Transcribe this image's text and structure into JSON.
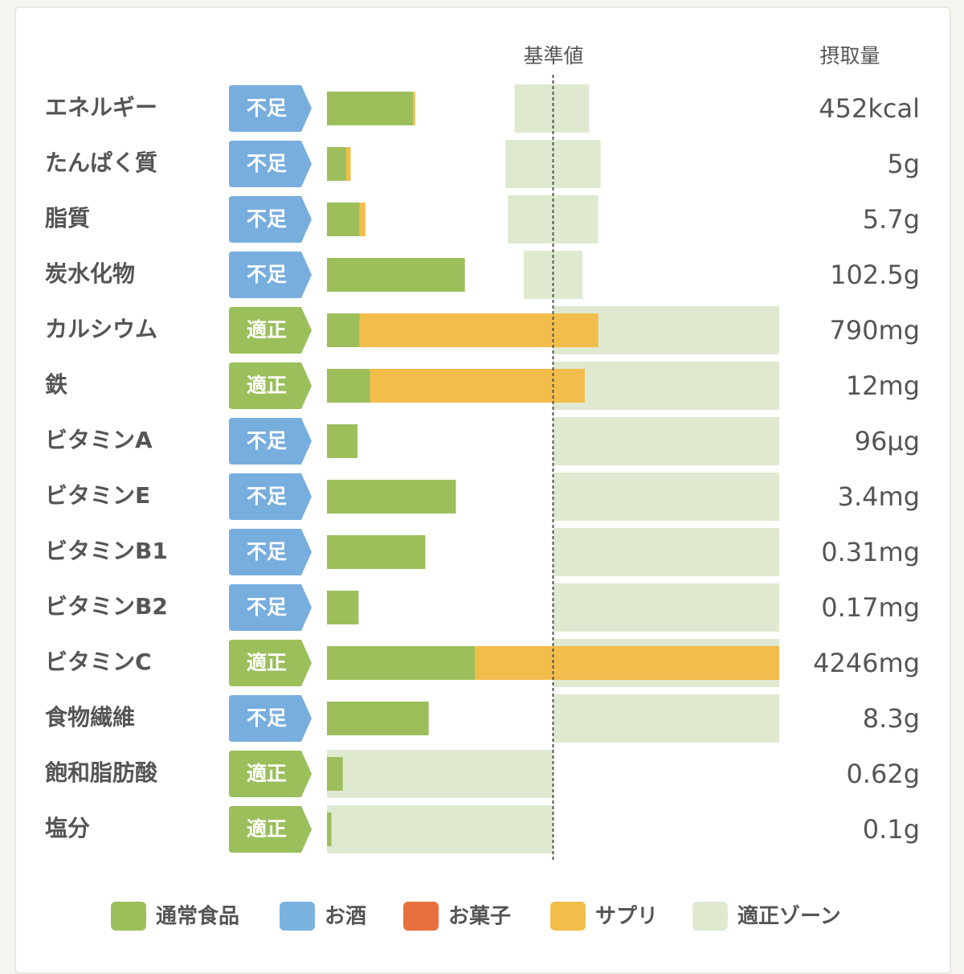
{
  "chart_data": {
    "type": "bar",
    "reference_label": "基準値",
    "amount_label": "摂取量",
    "reference": 100,
    "xlim": [
      0,
      200
    ],
    "categories": [
      "エネルギー",
      "たんぱく質",
      "脂質",
      "炭水化物",
      "カルシウム",
      "鉄",
      "ビタミンA",
      "ビタミンE",
      "ビタミンB1",
      "ビタミンB2",
      "ビタミンC",
      "食物繊維",
      "飽和脂肪酸",
      "塩分"
    ],
    "status": [
      "不足",
      "不足",
      "不足",
      "不足",
      "適正",
      "適正",
      "不足",
      "不足",
      "不足",
      "不足",
      "適正",
      "不足",
      "適正",
      "適正"
    ],
    "status_colors": {
      "不足": "#78aede",
      "適正": "#9bbf5b"
    },
    "amounts": [
      "452kcal",
      "5g",
      "5.7g",
      "102.5g",
      "790mg",
      "12mg",
      "96μg",
      "3.4mg",
      "0.31mg",
      "0.17mg",
      "4246mg",
      "8.3g",
      "0.62g",
      "0.1g"
    ],
    "series": [
      {
        "name": "通常食品",
        "color": "#9cbf5c",
        "values": [
          38,
          8.5,
          14.5,
          61,
          14.5,
          19,
          13.5,
          57,
          43.5,
          14,
          65.5,
          45,
          7,
          2
        ]
      },
      {
        "name": "お酒",
        "color": "#7ab3e0",
        "values": [
          0,
          0,
          0,
          0,
          0,
          0,
          0,
          0,
          0,
          0,
          0,
          0,
          0,
          0
        ]
      },
      {
        "name": "お菓子",
        "color": "#e8703e",
        "values": [
          0,
          0,
          0,
          0,
          0,
          0,
          0,
          0,
          0,
          0,
          0,
          0,
          0,
          0
        ]
      },
      {
        "name": "サプリ",
        "color": "#f3bd4b",
        "values": [
          1,
          2,
          2.5,
          0,
          105.5,
          95,
          0,
          0,
          0,
          0,
          134.5,
          0,
          0,
          0
        ]
      }
    ],
    "zone": {
      "name": "適正ゾーン",
      "color": "#dfe9cf",
      "ranges": [
        [
          83,
          116
        ],
        [
          79,
          121
        ],
        [
          80,
          120
        ],
        [
          87,
          113
        ],
        [
          100,
          200
        ],
        [
          100,
          200
        ],
        [
          100,
          200
        ],
        [
          100,
          200
        ],
        [
          100,
          200
        ],
        [
          100,
          200
        ],
        [
          100,
          200
        ],
        [
          100,
          200
        ],
        [
          0,
          100
        ],
        [
          0,
          100
        ]
      ]
    }
  }
}
